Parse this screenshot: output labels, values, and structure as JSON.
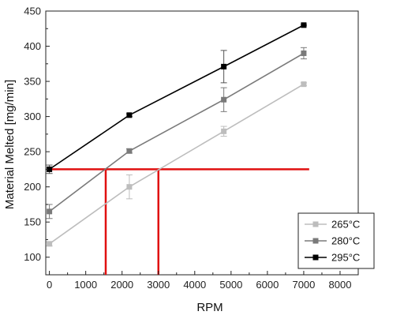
{
  "chart_data": {
    "type": "line",
    "xlabel": "RPM",
    "ylabel": "Material Melted [mg/min]",
    "xlim": [
      -100,
      8500
    ],
    "ylim": [
      75,
      450
    ],
    "xticks": [
      0,
      1000,
      2000,
      3000,
      4000,
      5000,
      6000,
      7000,
      8000
    ],
    "yticks": [
      100,
      150,
      200,
      250,
      300,
      350,
      400,
      450
    ],
    "grid": false,
    "legend_position": "bottom-right",
    "series": [
      {
        "name": "265°C",
        "color": "#bdbdbd",
        "points": [
          {
            "x": 0,
            "y": 119,
            "err": 3
          },
          {
            "x": 2200,
            "y": 200,
            "err": 17
          },
          {
            "x": 4800,
            "y": 279,
            "err": 7
          },
          {
            "x": 7000,
            "y": 346,
            "err": 2
          }
        ]
      },
      {
        "name": "280°C",
        "color": "#7a7a7a",
        "points": [
          {
            "x": 0,
            "y": 165,
            "err": 10
          },
          {
            "x": 2200,
            "y": 251,
            "err": 3
          },
          {
            "x": 4800,
            "y": 324,
            "err": 17
          },
          {
            "x": 7000,
            "y": 390,
            "err": 8
          }
        ]
      },
      {
        "name": "295°C",
        "color": "#000000",
        "points": [
          {
            "x": 0,
            "y": 225,
            "err": 6
          },
          {
            "x": 2200,
            "y": 302,
            "err": 2
          },
          {
            "x": 4800,
            "y": 371,
            "err": 23
          },
          {
            "x": 7000,
            "y": 430,
            "err": 1
          }
        ]
      }
    ],
    "reference_lines": {
      "color": "#e01010",
      "horizontal": {
        "y": 225,
        "x_from": 0,
        "x_to": 7150
      },
      "verticals": [
        {
          "x": 1550,
          "y_from": 75,
          "y_to": 225
        },
        {
          "x": 3000,
          "y_from": 75,
          "y_to": 225
        }
      ]
    }
  }
}
